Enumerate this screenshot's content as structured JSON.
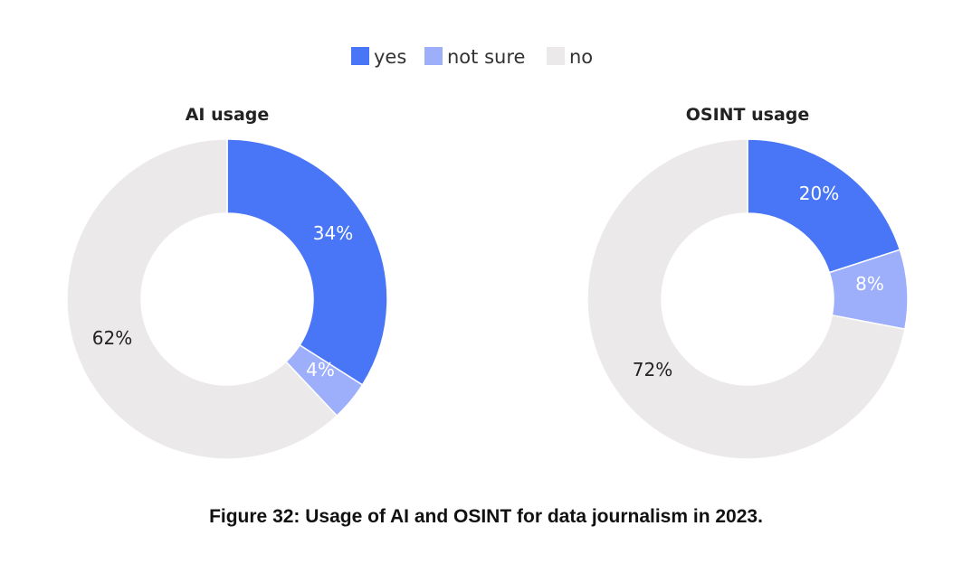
{
  "legend": [
    {
      "label": "yes",
      "color": "#4876f7"
    },
    {
      "label": "not sure",
      "color": "#9daefa"
    },
    {
      "label": "no",
      "color": "#ebe9e9"
    }
  ],
  "caption": "Figure 32: Usage of AI and OSINT for data journalism in 2023.",
  "chart_data": [
    {
      "type": "pie",
      "title": "AI usage",
      "categories": [
        "yes",
        "not sure",
        "no"
      ],
      "values": [
        34,
        4,
        62
      ],
      "labels": [
        "34%",
        "4%",
        "62%"
      ],
      "colors": [
        "#4876f7",
        "#9daefa",
        "#ebe9e9"
      ],
      "donut": true,
      "legend": "top"
    },
    {
      "type": "pie",
      "title": "OSINT usage",
      "categories": [
        "yes",
        "not sure",
        "no"
      ],
      "values": [
        20,
        8,
        72
      ],
      "labels": [
        "20%",
        "8%",
        "72%"
      ],
      "colors": [
        "#4876f7",
        "#9daefa",
        "#ebe9e9"
      ],
      "donut": true,
      "legend": "top"
    }
  ]
}
